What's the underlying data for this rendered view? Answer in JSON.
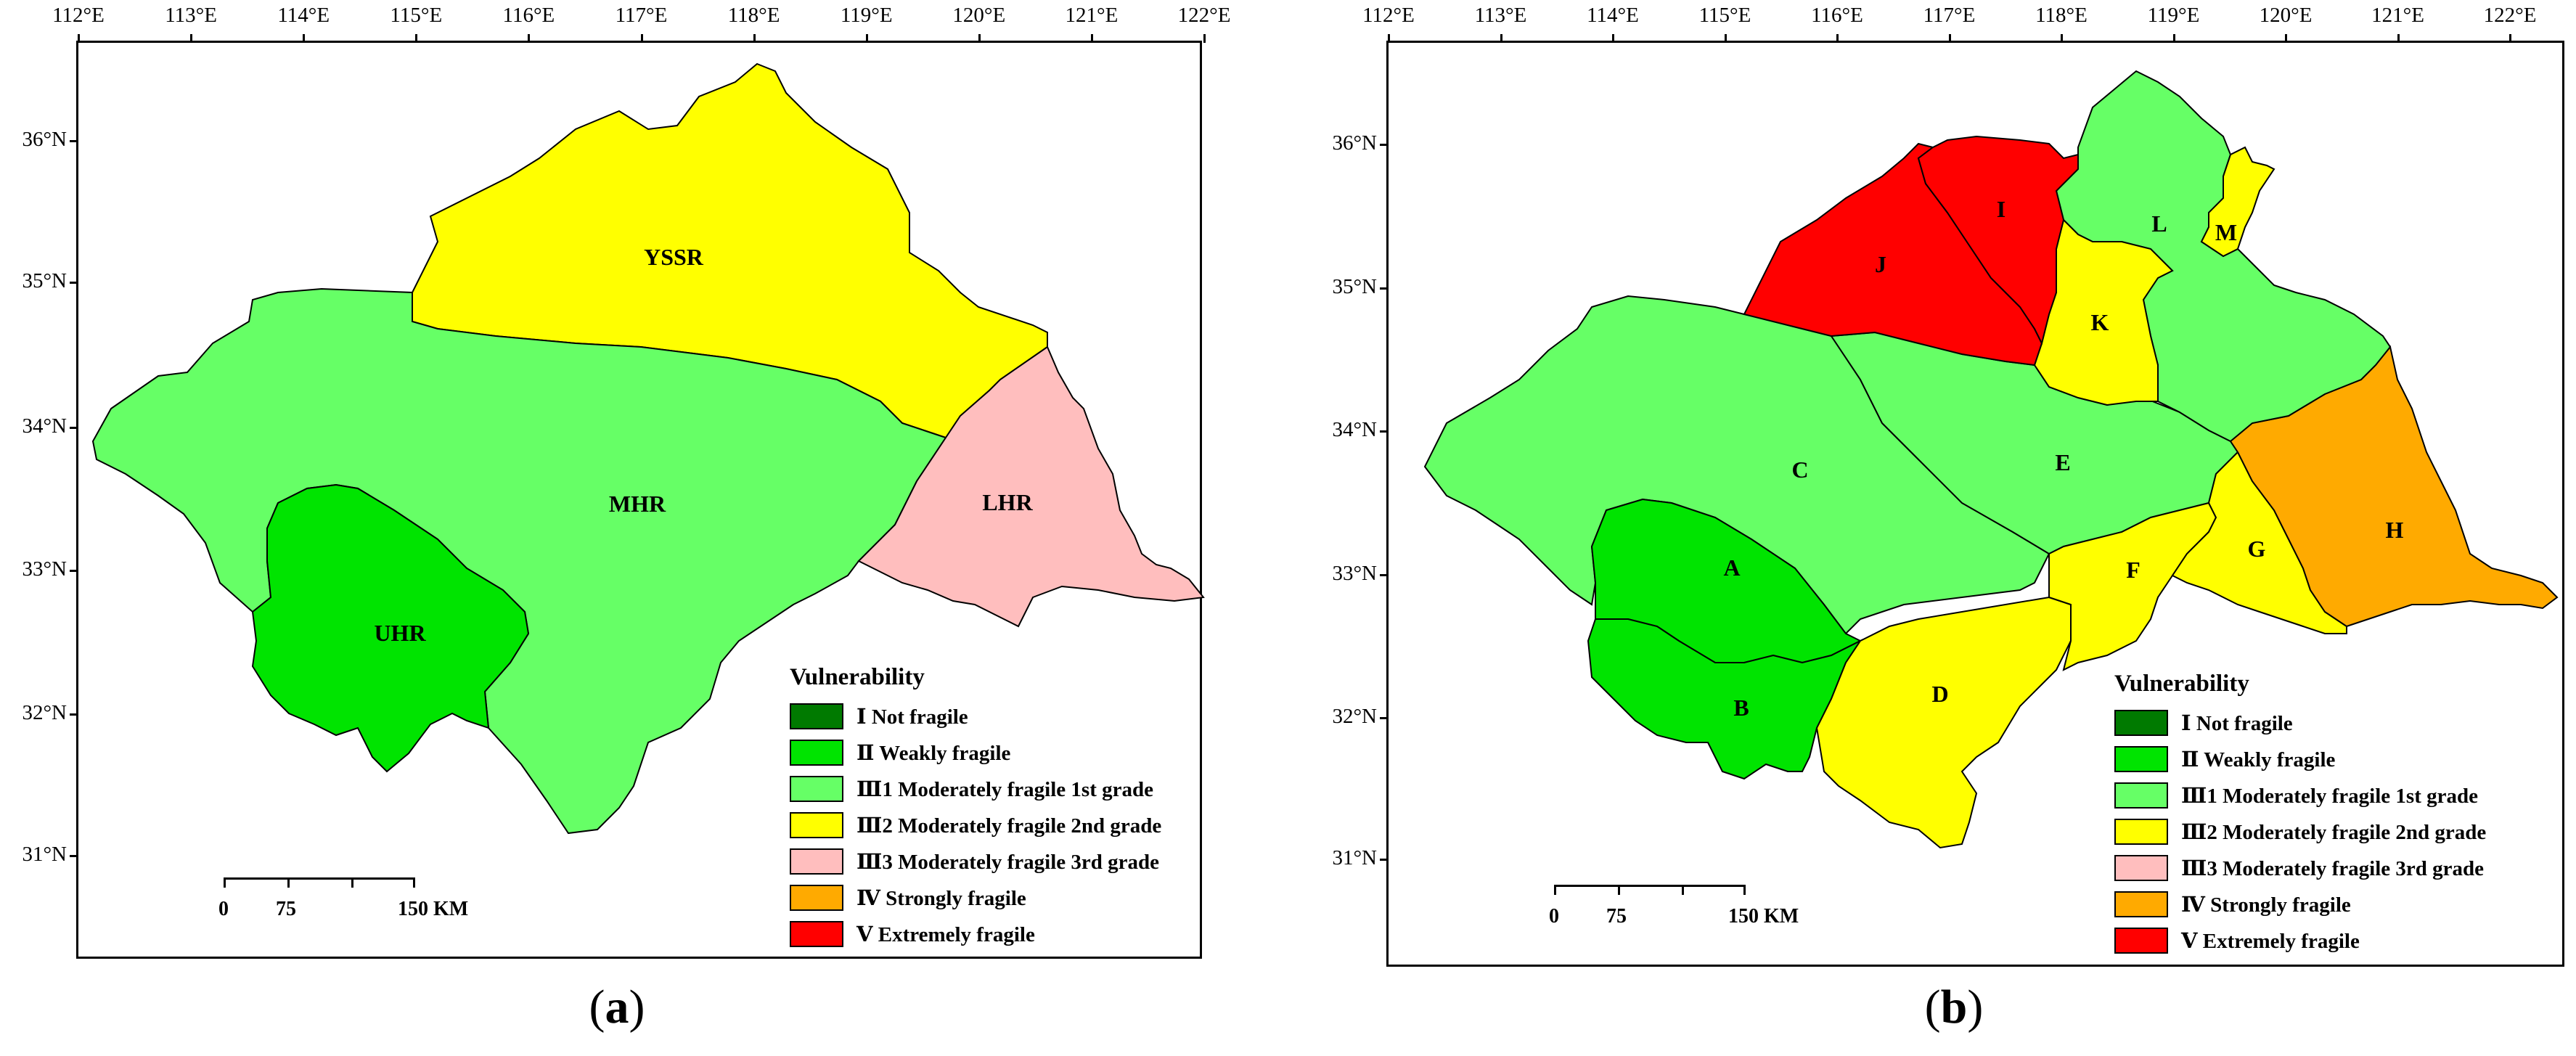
{
  "lon_labels": [
    "112°E",
    "113°E",
    "114°E",
    "115°E",
    "116°E",
    "117°E",
    "118°E",
    "119°E",
    "120°E",
    "121°E",
    "122°E"
  ],
  "lat_labels": [
    "36°N",
    "35°N",
    "34°N",
    "33°N",
    "32°N",
    "31°N"
  ],
  "legend": {
    "title": "Vulnerability",
    "items": [
      {
        "label": "Ⅰ Not fragile",
        "color": "#007a00"
      },
      {
        "label": "Ⅱ Weakly fragile",
        "color": "#00e400"
      },
      {
        "label": "Ⅲ1 Moderately fragile 1st grade",
        "color": "#66ff66"
      },
      {
        "label": "Ⅲ2 Moderately fragile 2nd grade",
        "color": "#ffff00"
      },
      {
        "label": "Ⅲ3 Moderately fragile 3rd grade",
        "color": "#ffbebe"
      },
      {
        "label": "Ⅳ Strongly fragile",
        "color": "#ffaa00"
      },
      {
        "label": "Ⅴ Extremely fragile",
        "color": "#ff0000"
      }
    ]
  },
  "scale": {
    "labels": [
      "0",
      "75",
      "150 KM"
    ]
  },
  "panel_a": {
    "caption_letter": "a",
    "regions": [
      {
        "label": "YSSR",
        "color": "#ffff00"
      },
      {
        "label": "MHR",
        "color": "#66ff66"
      },
      {
        "label": "LHR",
        "color": "#ffbebe"
      },
      {
        "label": "UHR",
        "color": "#00e400"
      }
    ]
  },
  "panel_b": {
    "caption_letter": "b",
    "regions": [
      {
        "label": "A",
        "color": "#00e400"
      },
      {
        "label": "B",
        "color": "#00e400"
      },
      {
        "label": "C",
        "color": "#66ff66"
      },
      {
        "label": "D",
        "color": "#ffff00"
      },
      {
        "label": "E",
        "color": "#66ff66"
      },
      {
        "label": "F",
        "color": "#ffff00"
      },
      {
        "label": "G",
        "color": "#ffff00"
      },
      {
        "label": "H",
        "color": "#ffaa00"
      },
      {
        "label": "I",
        "color": "#ff0000"
      },
      {
        "label": "J",
        "color": "#ff0000"
      },
      {
        "label": "K",
        "color": "#ffff00"
      },
      {
        "label": "L",
        "color": "#66ff66"
      },
      {
        "label": "M",
        "color": "#ffff00"
      }
    ]
  }
}
